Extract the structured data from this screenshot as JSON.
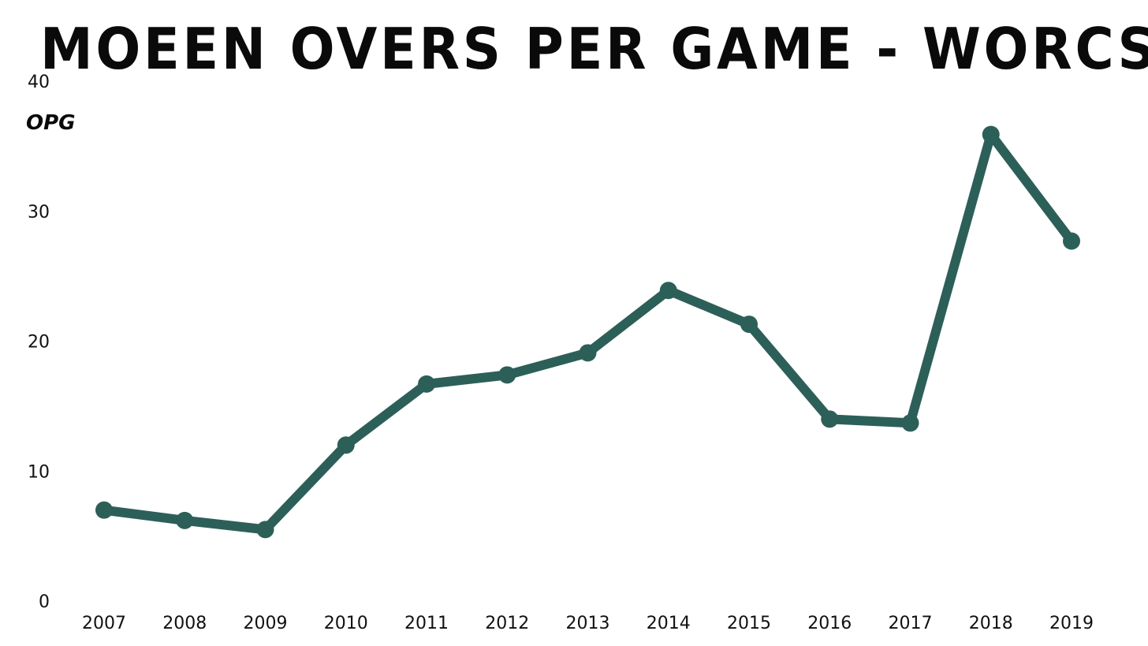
{
  "chart_data": {
    "type": "line",
    "title": "MOEEN OVERS PER GAME - WORCS",
    "xlabel": "",
    "ylabel": "OPG",
    "x": [
      "2007",
      "2008",
      "2009",
      "2010",
      "2011",
      "2012",
      "2013",
      "2014",
      "2015",
      "2016",
      "2017",
      "2018",
      "2019"
    ],
    "series": [
      {
        "values": [
          7.0,
          6.2,
          5.5,
          12.0,
          16.7,
          17.4,
          19.1,
          23.9,
          21.3,
          14.0,
          13.7,
          35.9,
          27.7
        ]
      }
    ],
    "ylim": [
      0,
      40
    ],
    "yticks": [
      0,
      10,
      20,
      30,
      40
    ],
    "grid": false,
    "legend": "none",
    "color": "#2d5f59"
  }
}
